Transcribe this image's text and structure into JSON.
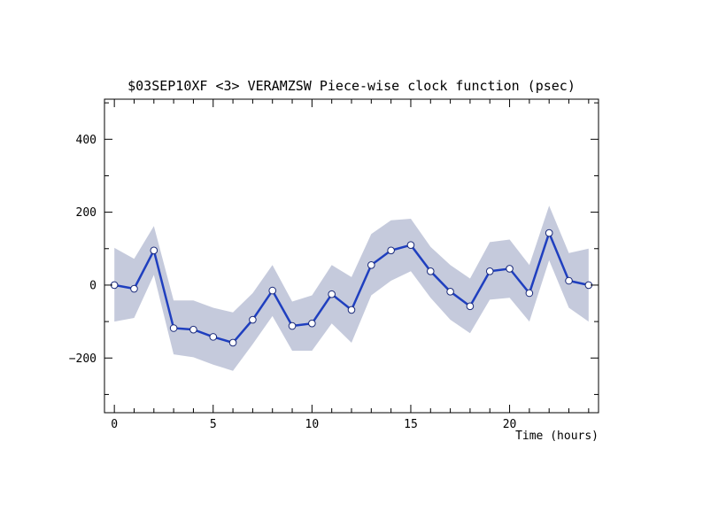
{
  "chart_data": {
    "type": "line",
    "title": "$03SEP10XF <3>  VERAMZSW  Piece-wise clock function (psec)",
    "xlabel": "Time (hours)",
    "ylabel": "",
    "xlim": [
      -0.5,
      24.5
    ],
    "ylim": [
      -350,
      510
    ],
    "x_ticks": [
      0,
      5,
      10,
      15,
      20
    ],
    "y_ticks": [
      -200,
      0,
      200,
      400
    ],
    "x_tick_labels": [
      "0",
      "5",
      "10",
      "15",
      "20"
    ],
    "y_tick_labels": [
      "−200",
      "0",
      "200",
      "400"
    ],
    "grid": false,
    "series": [
      {
        "x": [
          0,
          1,
          2,
          3,
          4,
          5,
          6,
          7,
          8,
          9,
          10,
          11,
          12,
          13,
          14,
          15,
          16,
          17,
          18,
          19,
          20,
          21,
          22,
          23,
          24
        ],
        "values": [
          0,
          -10,
          95,
          -118,
          -122,
          -142,
          -158,
          -95,
          -15,
          -112,
          -105,
          -25,
          -68,
          55,
          95,
          110,
          38,
          -18,
          -58,
          38,
          45,
          -22,
          143,
          12,
          0
        ],
        "upper": [
          102,
          72,
          162,
          -42,
          -42,
          -62,
          -75,
          -22,
          55,
          -45,
          -28,
          55,
          22,
          140,
          178,
          182,
          105,
          55,
          18,
          118,
          125,
          55,
          218,
          88,
          100
        ],
        "lower": [
          -100,
          -90,
          28,
          -190,
          -198,
          -218,
          -235,
          -162,
          -85,
          -180,
          -180,
          -105,
          -158,
          -28,
          12,
          38,
          -35,
          -95,
          -132,
          -40,
          -35,
          -100,
          68,
          -62,
          -100
        ]
      }
    ],
    "colors": {
      "line": "#1f3fbf",
      "band": "#c5cadc",
      "marker_fill": "#ffffff",
      "axis": "#000000"
    }
  }
}
